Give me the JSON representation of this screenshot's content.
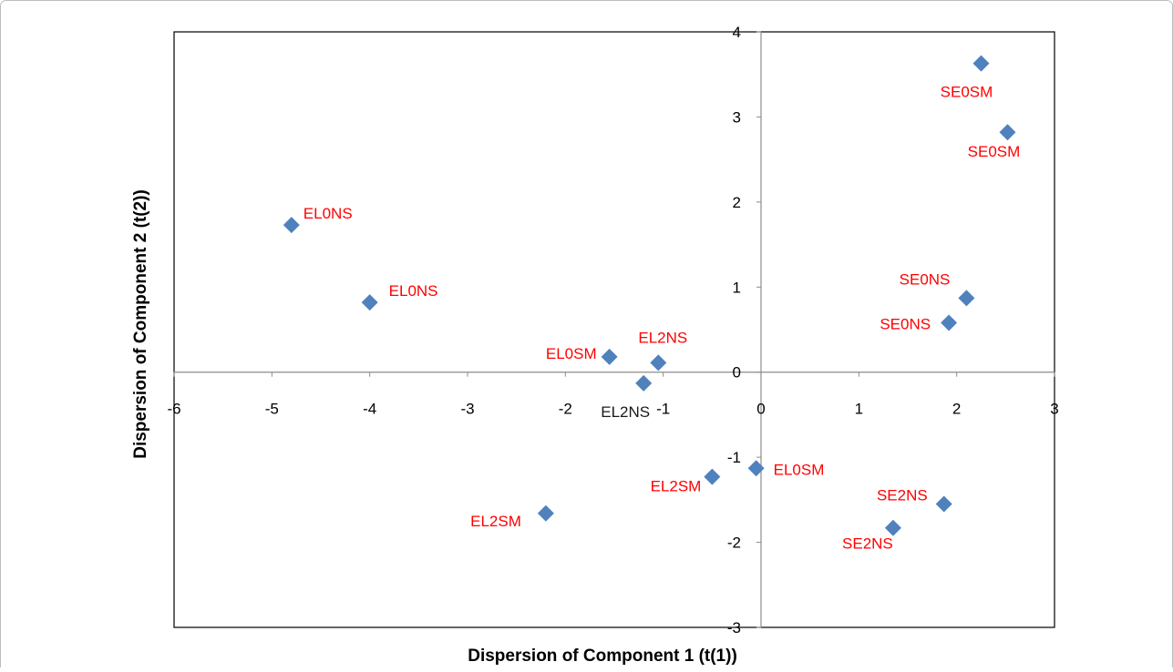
{
  "chart_data": {
    "type": "scatter",
    "title": "",
    "xlabel": "Dispersion of Component 1 (t(1))",
    "ylabel": "Dispersion of Component 2 (t(2))",
    "xlim": [
      -6,
      3
    ],
    "ylim": [
      -3,
      4
    ],
    "xticks": [
      -6,
      -5,
      -4,
      -3,
      -2,
      -1,
      0,
      1,
      2,
      3
    ],
    "yticks": [
      -3,
      -2,
      -1,
      0,
      1,
      2,
      3,
      4
    ],
    "grid": false,
    "marker": "diamond",
    "marker_color": "#4f81bd",
    "label_colors": {
      "default": "#ff0000",
      "dark": "#1a1a1a"
    },
    "points": [
      {
        "x": 2.25,
        "y": 3.63,
        "label": "SE0SM",
        "color": "red"
      },
      {
        "x": 2.52,
        "y": 2.82,
        "label": "SE0SM",
        "color": "red"
      },
      {
        "x": -4.8,
        "y": 1.73,
        "label": "EL0NS",
        "color": "red"
      },
      {
        "x": -4.0,
        "y": 0.82,
        "label": "EL0NS",
        "color": "red"
      },
      {
        "x": 2.1,
        "y": 0.87,
        "label": "SE0NS",
        "color": "red"
      },
      {
        "x": 1.92,
        "y": 0.58,
        "label": "SE0NS",
        "color": "red"
      },
      {
        "x": -1.55,
        "y": 0.18,
        "label": "EL0SM",
        "color": "red"
      },
      {
        "x": -1.05,
        "y": 0.11,
        "label": "EL2NS",
        "color": "red"
      },
      {
        "x": -1.2,
        "y": -0.13,
        "label": "EL2NS",
        "color": "dark"
      },
      {
        "x": -0.5,
        "y": -1.23,
        "label": "EL2SM",
        "color": "red"
      },
      {
        "x": -2.2,
        "y": -1.66,
        "label": "EL2SM",
        "color": "red"
      },
      {
        "x": -0.05,
        "y": -1.13,
        "label": "EL0SM",
        "color": "red"
      },
      {
        "x": 1.87,
        "y": -1.55,
        "label": "SE2NS",
        "color": "red"
      },
      {
        "x": 1.35,
        "y": -1.83,
        "label": "SE2NS",
        "color": "red"
      }
    ]
  }
}
